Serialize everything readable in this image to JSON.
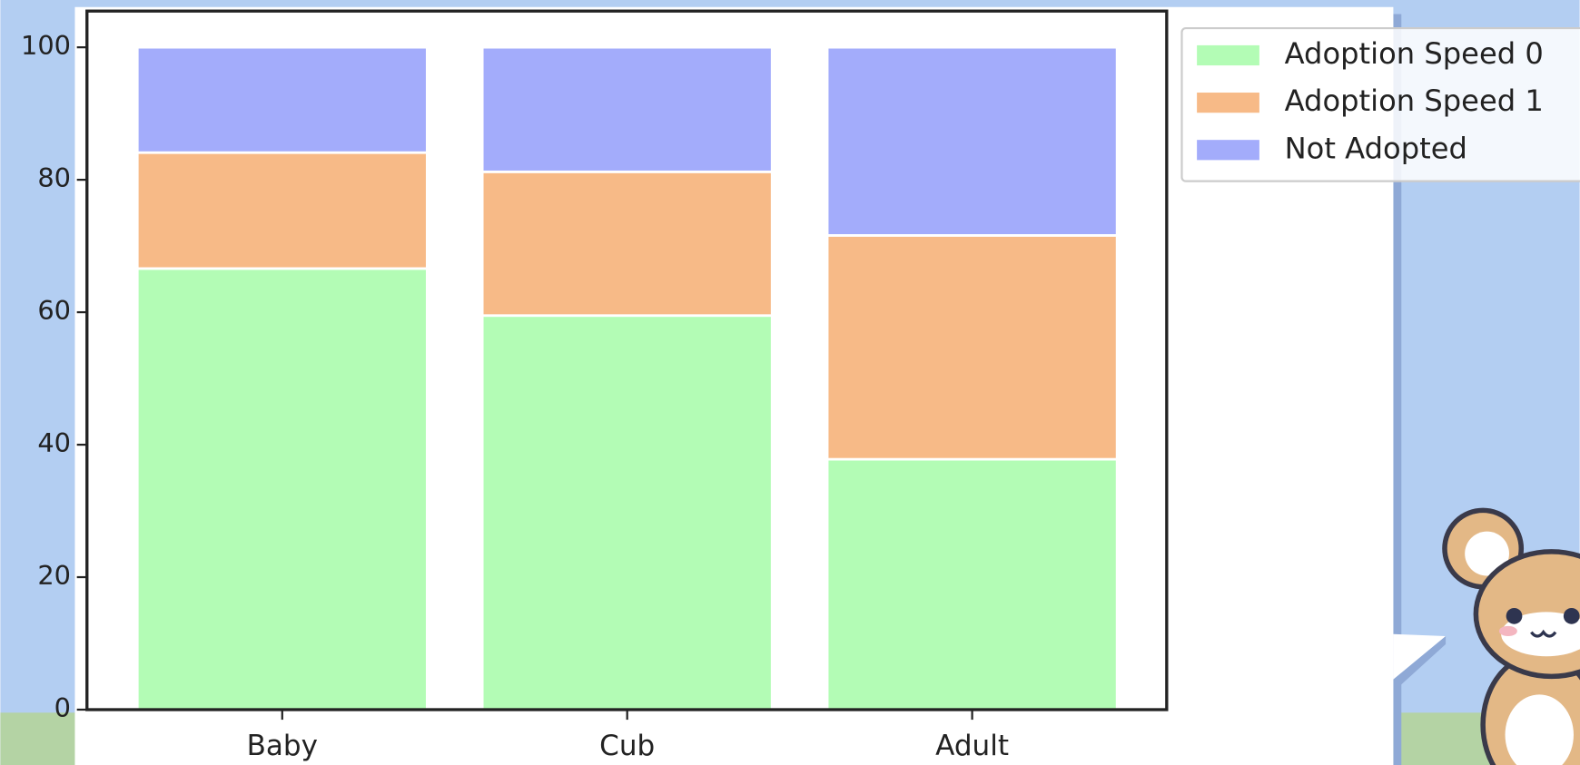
{
  "chart_data": {
    "type": "bar",
    "stacked": true,
    "categories": [
      "Baby",
      "Cub",
      "Adult"
    ],
    "series": [
      {
        "name": "Adoption Speed 0",
        "color": "#b3fcb5",
        "values": [
          66.6,
          59.5,
          37.8
        ]
      },
      {
        "name": "Adoption Speed 1",
        "color": "#f7ba87",
        "values": [
          17.5,
          21.7,
          33.8
        ]
      },
      {
        "name": "Not Adopted",
        "color": "#a3acfb",
        "values": [
          15.9,
          18.8,
          28.4
        ]
      }
    ],
    "ylim": [
      0,
      100
    ],
    "yticks": [
      0,
      20,
      40,
      60,
      80,
      100
    ]
  }
}
